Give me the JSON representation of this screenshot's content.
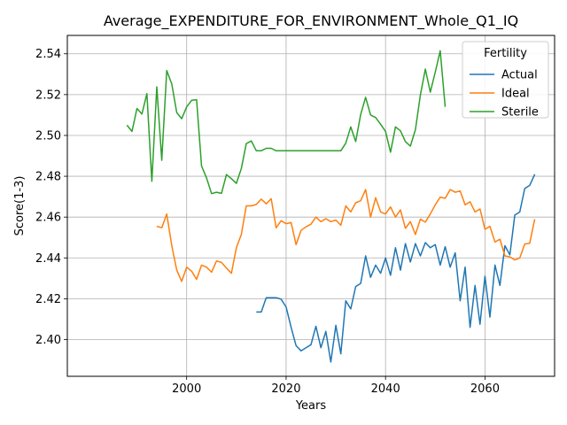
{
  "chart_data": {
    "type": "line",
    "title": "Average_EXPENDITURE_FOR_ENVIRONMENT_Whole_Q1_IQ",
    "xlabel": "Years",
    "ylabel": "Score(1-3)",
    "xlim": [
      1976,
      2074
    ],
    "ylim": [
      2.382,
      2.549
    ],
    "xticks": [
      2000,
      2020,
      2040,
      2060
    ],
    "yticks": [
      2.4,
      2.42,
      2.44,
      2.46,
      2.48,
      2.5,
      2.52,
      2.54
    ],
    "grid": true,
    "legend": {
      "title": "Fertility",
      "placement": "top-right"
    },
    "series": [
      {
        "name": "Actual",
        "color": "#1f77b4",
        "x": [
          2014,
          2015,
          2016,
          2017,
          2018,
          2019,
          2020,
          2021,
          2022,
          2023,
          2024,
          2025,
          2026,
          2027,
          2028,
          2029,
          2030,
          2031,
          2032,
          2033,
          2034,
          2035,
          2036,
          2037,
          2038,
          2039,
          2040,
          2041,
          2042,
          2043,
          2044,
          2045,
          2046,
          2047,
          2048,
          2049,
          2050,
          2051,
          2052,
          2053,
          2054,
          2055,
          2056,
          2057,
          2058,
          2059,
          2060,
          2061,
          2062,
          2063,
          2064,
          2065,
          2066,
          2067,
          2068,
          2069,
          2070
        ],
        "y": [
          2.4135,
          2.4135,
          2.4205,
          2.4205,
          2.4205,
          2.4198,
          2.416,
          2.406,
          2.397,
          2.3945,
          2.396,
          2.3975,
          2.4065,
          2.396,
          2.404,
          2.389,
          2.407,
          2.393,
          2.419,
          2.415,
          2.426,
          2.4275,
          2.441,
          2.4305,
          2.4365,
          2.4325,
          2.44,
          2.4315,
          2.445,
          2.434,
          2.447,
          2.438,
          2.447,
          2.441,
          2.4475,
          2.445,
          2.4465,
          2.4365,
          2.4455,
          2.4355,
          2.4425,
          2.419,
          2.4355,
          2.406,
          2.4265,
          2.4075,
          2.431,
          2.411,
          2.4365,
          2.4265,
          2.446,
          2.4415,
          2.461,
          2.4625,
          2.474,
          2.4755,
          2.481
        ]
      },
      {
        "name": "Ideal",
        "color": "#ff7f0e",
        "x": [
          1994,
          1995,
          1996,
          1997,
          1998,
          1999,
          2000,
          2001,
          2002,
          2003,
          2004,
          2005,
          2006,
          2007,
          2008,
          2009,
          2010,
          2011,
          2012,
          2013,
          2014,
          2015,
          2016,
          2017,
          2018,
          2019,
          2020,
          2021,
          2022,
          2023,
          2024,
          2025,
          2026,
          2027,
          2028,
          2029,
          2030,
          2031,
          2032,
          2033,
          2034,
          2035,
          2036,
          2037,
          2038,
          2039,
          2040,
          2041,
          2042,
          2043,
          2044,
          2045,
          2046,
          2047,
          2048,
          2049,
          2050,
          2051,
          2052,
          2053,
          2054,
          2055,
          2056,
          2057,
          2058,
          2059,
          2060,
          2061,
          2062,
          2063,
          2064,
          2065,
          2066,
          2067,
          2068,
          2069,
          2070
        ],
        "y": [
          2.4555,
          2.4548,
          2.4615,
          2.446,
          2.434,
          2.4285,
          2.4355,
          2.4335,
          2.4295,
          2.4365,
          2.4355,
          2.433,
          2.4385,
          2.4378,
          2.435,
          2.4325,
          2.445,
          2.4515,
          2.4655,
          2.4655,
          2.4662,
          2.4688,
          2.4665,
          2.469,
          2.4548,
          2.4582,
          2.4568,
          2.4573,
          2.4465,
          2.4535,
          2.4552,
          2.4565,
          2.46,
          2.4578,
          2.4592,
          2.4578,
          2.4585,
          2.456,
          2.4655,
          2.4625,
          2.467,
          2.468,
          2.4735,
          2.46,
          2.4695,
          2.4625,
          2.4615,
          2.465,
          2.46,
          2.4635,
          2.4545,
          2.4578,
          2.4515,
          2.459,
          2.4575,
          2.4615,
          2.466,
          2.4698,
          2.4692,
          2.4735,
          2.4722,
          2.4728,
          2.466,
          2.4675,
          2.4625,
          2.464,
          2.454,
          2.4555,
          2.4478,
          2.4492,
          2.441,
          2.4405,
          2.439,
          2.44,
          2.4468,
          2.4472,
          2.459
        ]
      },
      {
        "name": "Sterile",
        "color": "#2ca02c",
        "x": [
          1988,
          1989,
          1990,
          1991,
          1992,
          1993,
          1994,
          1995,
          1996,
          1997,
          1998,
          1999,
          2000,
          2001,
          2002,
          2003,
          2004,
          2005,
          2006,
          2007,
          2008,
          2009,
          2010,
          2011,
          2012,
          2013,
          2014,
          2015,
          2016,
          2017,
          2018,
          2019,
          2020,
          2021,
          2022,
          2023,
          2024,
          2025,
          2026,
          2027,
          2028,
          2029,
          2030,
          2031,
          2032,
          2033,
          2034,
          2035,
          2036,
          2037,
          2038,
          2039,
          2040,
          2041,
          2042,
          2043,
          2044,
          2045,
          2046,
          2047,
          2048,
          2049,
          2050,
          2051,
          2052
        ],
        "y": [
          2.505,
          2.502,
          2.5132,
          2.5105,
          2.5205,
          2.4775,
          2.5238,
          2.4878,
          2.5318,
          2.5252,
          2.5112,
          2.5082,
          2.514,
          2.5172,
          2.5175,
          2.485,
          2.4792,
          2.4715,
          2.4722,
          2.4716,
          2.4808,
          2.4788,
          2.4765,
          2.4838,
          2.496,
          2.4973,
          2.4925,
          2.4925,
          2.4937,
          2.4937,
          2.4925,
          2.4925,
          2.4925,
          2.4925,
          2.4925,
          2.4925,
          2.4925,
          2.4925,
          2.4925,
          2.4925,
          2.4925,
          2.4925,
          2.4925,
          2.4925,
          2.4962,
          2.5042,
          2.497,
          2.5102,
          2.5187,
          2.51,
          2.5088,
          2.5055,
          2.502,
          2.4918,
          2.5042,
          2.5023,
          2.497,
          2.4948,
          2.5028,
          2.5198,
          2.5325,
          2.5212,
          2.531,
          2.5415,
          2.514
        ]
      }
    ]
  }
}
